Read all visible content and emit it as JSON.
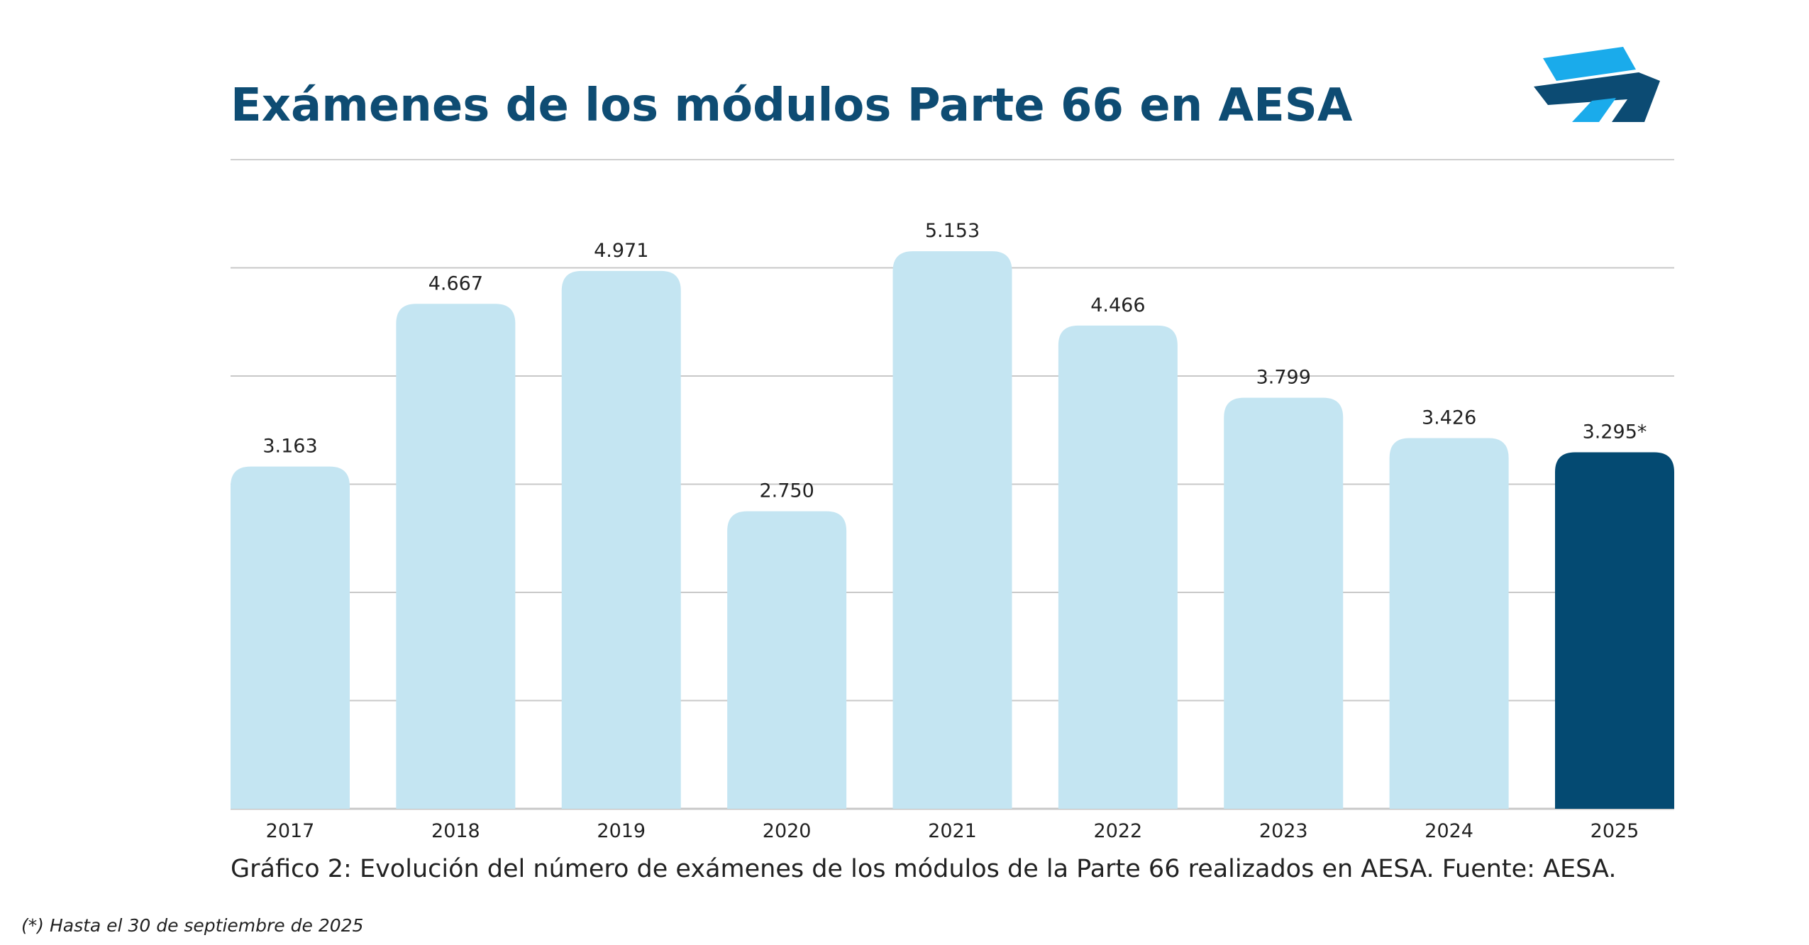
{
  "header": {
    "title": "Exámenes de los módulos Parte 66 en AESA",
    "logo_icon": "aesa-logo-icon"
  },
  "chart_data": {
    "type": "bar",
    "title": "Exámenes de los módulos Parte 66 en AESA",
    "xlabel": "",
    "ylabel": "",
    "categories": [
      "2017",
      "2018",
      "2019",
      "2020",
      "2021",
      "2022",
      "2023",
      "2024",
      "2025"
    ],
    "values": [
      3163,
      4667,
      4971,
      2750,
      5153,
      4466,
      3799,
      3426,
      3295
    ],
    "value_labels": [
      "3.163",
      "4.667",
      "4.971",
      "2.750",
      "5.153",
      "4.466",
      "3.799",
      "3.426",
      "3.295*"
    ],
    "highlight_index": 8,
    "ylim": [
      0,
      5000
    ],
    "gridlines": [
      0,
      1000,
      2000,
      3000,
      4000,
      5000
    ],
    "grid": true,
    "y_tick_labels_visible": false
  },
  "caption": "Gráfico 2: Evolución del número de exámenes de los módulos de la Parte 66 realizados en AESA. Fuente: AESA.",
  "footnote": "(*) Hasta el 30 de septiembre de 2025",
  "colors": {
    "title": "#0e4c73",
    "bar": "#c4e5f2",
    "bar_highlight": "#044a72",
    "gridline": "#c8c8c8",
    "logo_light": "#1aabeb",
    "logo_dark": "#0c4b73",
    "text": "#222222"
  }
}
